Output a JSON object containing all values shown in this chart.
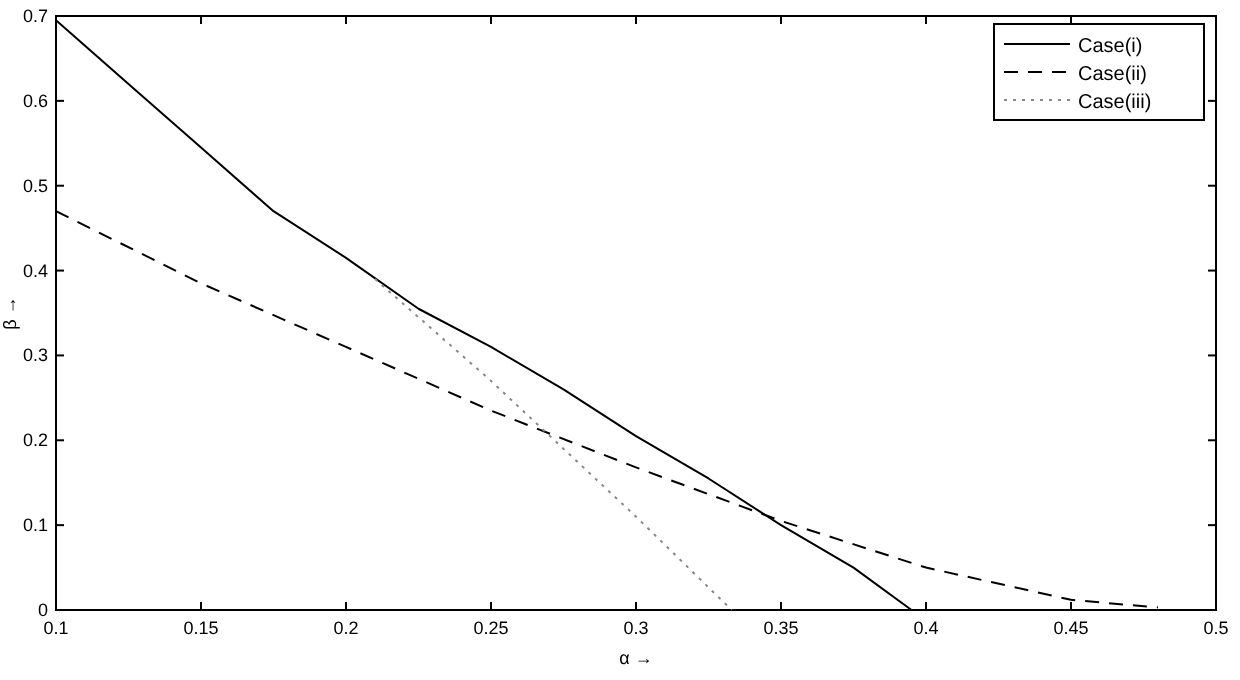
{
  "chart_data": {
    "type": "line",
    "xlabel": "α →",
    "ylabel": "β →",
    "xlim": [
      0.1,
      0.5
    ],
    "ylim": [
      0,
      0.7
    ],
    "xticks": [
      0.1,
      0.15,
      0.2,
      0.25,
      0.3,
      0.35,
      0.4,
      0.45,
      0.5
    ],
    "yticks": [
      0,
      0.1,
      0.2,
      0.3,
      0.4,
      0.5,
      0.6,
      0.7
    ],
    "grid": false,
    "legend": "top right",
    "marker": "none",
    "series": [
      {
        "name": "Case(i)",
        "color": "#000000",
        "line_style": "solid",
        "x": [
          0.1,
          0.125,
          0.15,
          0.175,
          0.2,
          0.225,
          0.25,
          0.275,
          0.3,
          0.325,
          0.35,
          0.375,
          0.395
        ],
        "values": [
          0.695,
          0.62,
          0.545,
          0.47,
          0.415,
          0.355,
          0.31,
          0.26,
          0.205,
          0.155,
          0.1,
          0.05,
          0
        ]
      },
      {
        "name": "Case(ii)",
        "color": "#000000",
        "line_style": "dashed",
        "x": [
          0.1,
          0.15,
          0.2,
          0.25,
          0.3,
          0.35,
          0.4,
          0.45,
          0.48
        ],
        "values": [
          0.47,
          0.385,
          0.31,
          0.235,
          0.168,
          0.105,
          0.05,
          0.012,
          0.003
        ]
      },
      {
        "name": "Case(iii)",
        "color": "#888888",
        "line_style": "dotted",
        "x": [
          0.21,
          0.25,
          0.3,
          0.333
        ],
        "values": [
          0.39,
          0.27,
          0.11,
          0
        ]
      }
    ]
  }
}
